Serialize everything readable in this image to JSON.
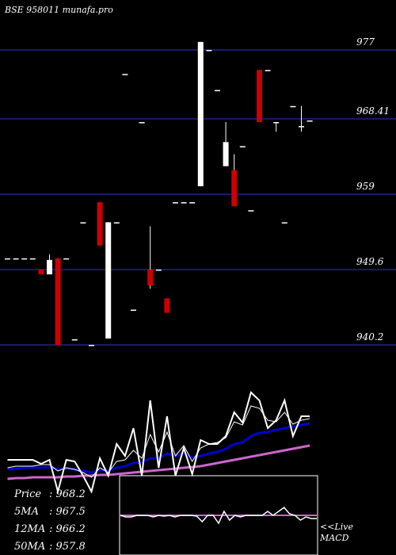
{
  "chart_data": {
    "type": "candlestick",
    "title": "BSE 958011 munafa.pro",
    "y_ticks": [
      "977",
      "968.41",
      "959",
      "949.6",
      "940.2"
    ],
    "y_tick_values": [
      977,
      968.41,
      959,
      949.6,
      940.2
    ],
    "ylim": [
      938.5,
      981
    ],
    "grid": true,
    "candles": [
      {
        "open": 951,
        "high": 951,
        "low": 951,
        "close": 951
      },
      {
        "open": 951,
        "high": 951,
        "low": 951,
        "close": 951
      },
      {
        "open": 951,
        "high": 951,
        "low": 951,
        "close": 951
      },
      {
        "open": 951,
        "high": 951,
        "low": 951,
        "close": 951
      },
      {
        "open": 949.6,
        "high": 949.6,
        "low": 949,
        "close": 949
      },
      {
        "open": 949,
        "high": 951.5,
        "low": 949,
        "close": 950.8
      },
      {
        "open": 951,
        "high": 951,
        "low": 940.2,
        "close": 940.2
      },
      {
        "open": 951,
        "high": 951,
        "low": 951,
        "close": 951
      },
      {
        "open": 940.9,
        "high": 940.9,
        "low": 940.9,
        "close": 940.9
      },
      {
        "open": 955.5,
        "high": 955.5,
        "low": 955.5,
        "close": 955.5
      },
      {
        "open": 940.2,
        "high": 940.2,
        "low": 940.2,
        "close": 940.2
      },
      {
        "open": 958,
        "high": 958,
        "low": 952.6,
        "close": 952.6
      },
      {
        "open": 941,
        "high": 955.5,
        "low": 941,
        "close": 955.5
      },
      {
        "open": 955.5,
        "high": 955.5,
        "low": 955.5,
        "close": 955.5
      },
      {
        "open": 974,
        "high": 974,
        "low": 974,
        "close": 974
      },
      {
        "open": 944.6,
        "high": 944.6,
        "low": 944.6,
        "close": 944.6
      },
      {
        "open": 968,
        "high": 968,
        "low": 968,
        "close": 968
      },
      {
        "open": 949.6,
        "high": 955,
        "low": 947.2,
        "close": 947.6
      },
      {
        "open": 949.6,
        "high": 949.6,
        "low": 949.6,
        "close": 949.6
      },
      {
        "open": 946,
        "high": 946,
        "low": 944.2,
        "close": 944.2
      },
      {
        "open": 958,
        "high": 958,
        "low": 958,
        "close": 958
      },
      {
        "open": 958,
        "high": 958,
        "low": 958,
        "close": 958
      },
      {
        "open": 958,
        "high": 958,
        "low": 958,
        "close": 958
      },
      {
        "open": 960,
        "high": 978,
        "low": 960,
        "close": 978
      },
      {
        "open": 977,
        "high": 977,
        "low": 977,
        "close": 977
      },
      {
        "open": 972,
        "high": 972,
        "low": 972,
        "close": 972
      },
      {
        "open": 962.5,
        "high": 968,
        "low": 962.5,
        "close": 965.5
      },
      {
        "open": 962,
        "high": 964,
        "low": 957.5,
        "close": 957.5
      },
      {
        "open": 965,
        "high": 965,
        "low": 965,
        "close": 965
      },
      {
        "open": 957,
        "high": 957,
        "low": 957,
        "close": 957
      },
      {
        "open": 974.5,
        "high": 974.5,
        "low": 968,
        "close": 968
      },
      {
        "open": 974.5,
        "high": 974.5,
        "low": 974.5,
        "close": 974.5
      },
      {
        "open": 968,
        "high": 968,
        "low": 966.8,
        "close": 968
      },
      {
        "open": 955.5,
        "high": 955.5,
        "low": 955.5,
        "close": 955.5
      },
      {
        "open": 970,
        "high": 970,
        "low": 970,
        "close": 970
      },
      {
        "open": 967.5,
        "high": 970,
        "low": 966.8,
        "close": 967.5
      },
      {
        "open": 968.2,
        "high": 968.2,
        "low": 968.2,
        "close": 968.2
      }
    ],
    "indicator_panel": {
      "price_series": [
        580,
        580,
        580,
        580,
        585,
        580,
        620,
        580,
        582,
        600,
        620,
        578,
        600,
        560,
        575,
        540,
        600,
        505,
        590,
        525,
        600,
        565,
        598,
        555,
        560,
        560,
        550,
        520,
        533,
        495,
        505,
        540,
        530,
        505,
        550,
        525,
        525
      ],
      "ma5_series": [
        590,
        588,
        588,
        588,
        586,
        586,
        594,
        590,
        592,
        596,
        602,
        590,
        596,
        582,
        580,
        568,
        578,
        548,
        570,
        545,
        575,
        562,
        582,
        565,
        560,
        558,
        552,
        532,
        536,
        512,
        515,
        530,
        532,
        520,
        535,
        530,
        528
      ],
      "ma12_series": [
        592,
        591,
        590,
        590,
        590,
        589,
        592,
        591,
        592,
        594,
        596,
        593,
        594,
        590,
        588,
        584,
        583,
        578,
        578,
        572,
        575,
        572,
        577,
        575,
        572,
        570,
        566,
        560,
        558,
        550,
        546,
        545,
        542,
        540,
        538,
        536,
        534
      ],
      "ma50_series": [
        604,
        603,
        603,
        602,
        602,
        602,
        602,
        601,
        601,
        600,
        600,
        599,
        599,
        598,
        597,
        596,
        595,
        594,
        593,
        592,
        591,
        590,
        589,
        588,
        586,
        584,
        582,
        580,
        578,
        576,
        574,
        572,
        570,
        568,
        566,
        564,
        562
      ],
      "colors": {
        "price": "#ffffff",
        "ma5": "#ffffff",
        "ma12": "#0000cc",
        "ma50": "#cc66cc"
      }
    },
    "macd_panel": {
      "macd_series": [
        650,
        652,
        652,
        650,
        650,
        650,
        652,
        650,
        651,
        650,
        652,
        650,
        650,
        650,
        651,
        658,
        650,
        650,
        660,
        645,
        656,
        650,
        652,
        650,
        650,
        650,
        650,
        645,
        650,
        645,
        640,
        648,
        650,
        656,
        652,
        654,
        654
      ],
      "signal_series": [
        650,
        650,
        650,
        650,
        650,
        650,
        650,
        650,
        650,
        650,
        650,
        650,
        650,
        650,
        650,
        650,
        650,
        650,
        650,
        650,
        650,
        650,
        650,
        650,
        650,
        650,
        650,
        650,
        650,
        650,
        650,
        650,
        650,
        650,
        650,
        650,
        650
      ],
      "colors": {
        "macd": "#ffffff",
        "signal": "#cc66cc"
      }
    },
    "stats": [
      {
        "label": "Price",
        "value": ": 968.2"
      },
      {
        "label": "5MA",
        "value": ": 967.5"
      },
      {
        "label": "12MA",
        "value": ": 966.2"
      },
      {
        "label": "50MA",
        "value": ": 957.8"
      }
    ],
    "macd_label": "<<Live MACD",
    "colors": {
      "background": "#000000",
      "grid": "#1a1a6e",
      "up_candle": "#ffffff",
      "down_candle": "#cc0000",
      "text": "#ffffff"
    }
  }
}
